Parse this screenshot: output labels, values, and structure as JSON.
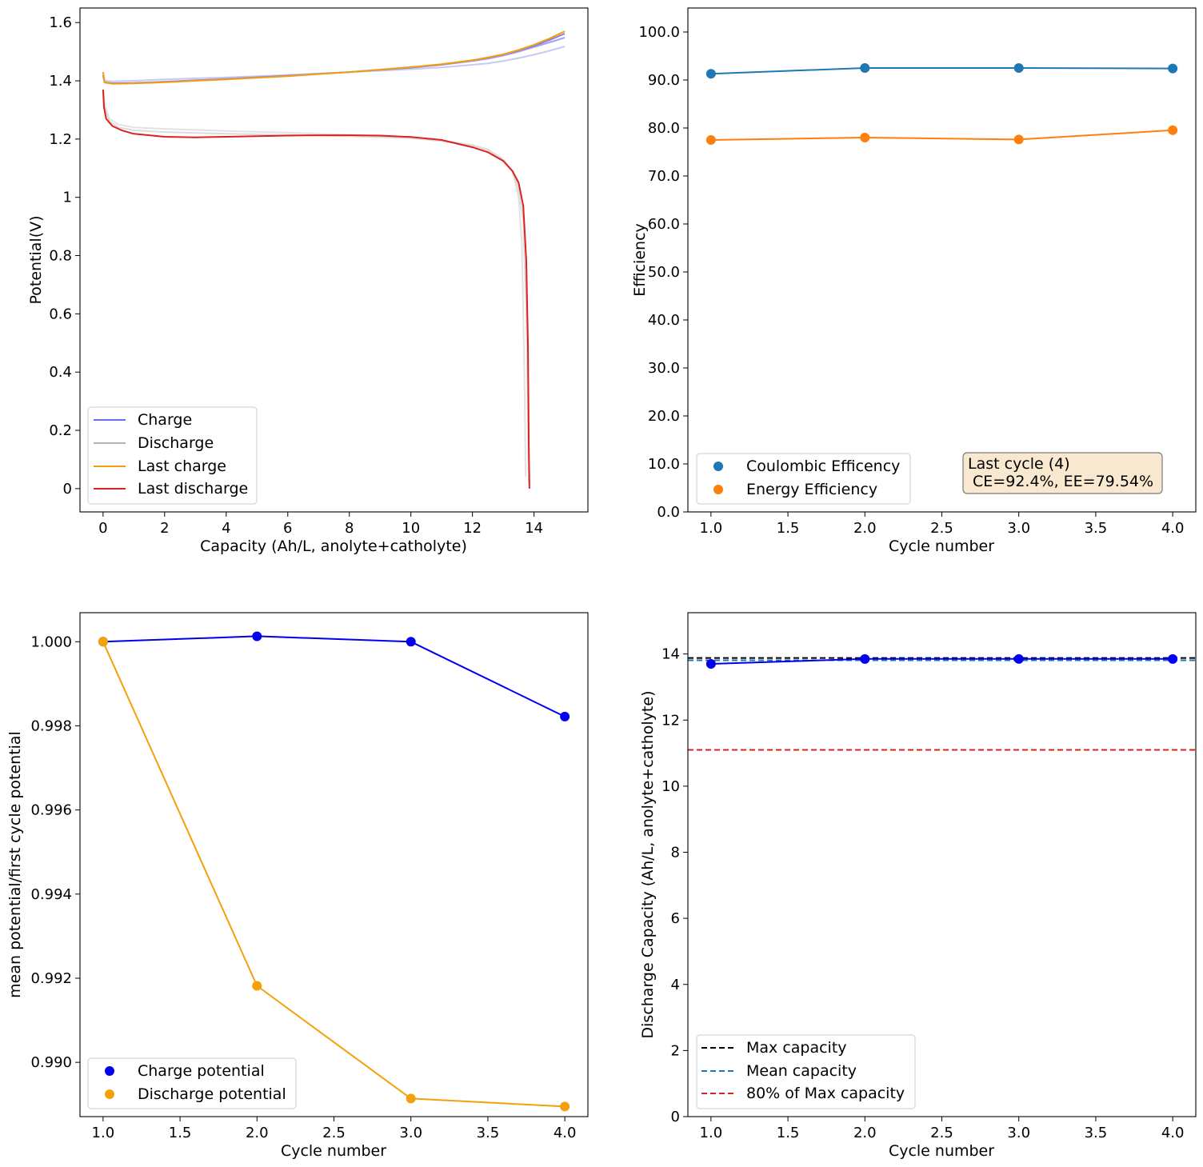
{
  "chart_data": [
    {
      "type": "line",
      "title": "",
      "xlabel": "Capacity (Ah/L, anolyte+catholyte)",
      "ylabel": "Potential(V)",
      "xlim": [
        -0.75,
        15.75
      ],
      "ylim": [
        -0.08,
        1.65
      ],
      "xticks": [
        0,
        2,
        4,
        6,
        8,
        10,
        12,
        14
      ],
      "yticks": [
        0.0,
        0.2,
        0.4,
        0.6,
        0.8,
        1.0,
        1.2,
        1.4,
        1.6
      ],
      "legend_position": "lower-left",
      "legend": [
        {
          "label": "Charge",
          "color": "#6b6bf0"
        },
        {
          "label": "Discharge",
          "color": "#b4b4b4"
        },
        {
          "label": "Last charge",
          "color": "#f59e0b"
        },
        {
          "label": "Last discharge",
          "color": "#dd2020"
        }
      ],
      "series": [
        {
          "name": "Charge (cycle 1)",
          "color": "#c8c8f5",
          "x": [
            0,
            0.05,
            0.3,
            1,
            2,
            4,
            6,
            8,
            10,
            11,
            12,
            12.5,
            13,
            13.5,
            14,
            14.5,
            15
          ],
          "y": [
            1.42,
            1.4,
            1.398,
            1.4,
            1.405,
            1.412,
            1.42,
            1.43,
            1.44,
            1.446,
            1.455,
            1.46,
            1.468,
            1.478,
            1.49,
            1.503,
            1.518
          ]
        },
        {
          "name": "Charge (cycle 2)",
          "color": "#a0a0f0",
          "x": [
            0,
            0.05,
            0.3,
            1,
            2,
            4,
            6,
            8,
            10,
            11,
            12,
            12.5,
            13,
            13.5,
            14,
            14.5,
            15
          ],
          "y": [
            1.42,
            1.395,
            1.392,
            1.393,
            1.397,
            1.407,
            1.418,
            1.43,
            1.445,
            1.455,
            1.468,
            1.476,
            1.487,
            1.5,
            1.516,
            1.532,
            1.548
          ]
        },
        {
          "name": "Charge (cycle 3)",
          "color": "#8080ee",
          "x": [
            0,
            0.05,
            0.3,
            1,
            2,
            4,
            6,
            8,
            10,
            11,
            12,
            12.5,
            13,
            13.5,
            14,
            14.5,
            15
          ],
          "y": [
            1.42,
            1.394,
            1.391,
            1.392,
            1.396,
            1.406,
            1.417,
            1.43,
            1.446,
            1.456,
            1.47,
            1.479,
            1.49,
            1.504,
            1.52,
            1.54,
            1.562
          ]
        },
        {
          "name": "Discharge (cycle 1)",
          "color": "#e2e2e2",
          "x": [
            0,
            0.05,
            0.2,
            0.5,
            1,
            2,
            4,
            6,
            8,
            10,
            11,
            12,
            12.5,
            13,
            13.3,
            13.5,
            13.6,
            13.65,
            13.7,
            13.72,
            13.73
          ],
          "y": [
            1.37,
            1.32,
            1.27,
            1.25,
            1.24,
            1.235,
            1.228,
            1.222,
            1.215,
            1.205,
            1.195,
            1.18,
            1.165,
            1.13,
            1.09,
            1.0,
            0.85,
            0.6,
            0.3,
            0.1,
            0.04
          ]
        },
        {
          "name": "Discharge (cycle 2)",
          "color": "#dcdcdc",
          "x": [
            0,
            0.05,
            0.2,
            0.5,
            1,
            2,
            4,
            6,
            8,
            10,
            11,
            12,
            12.5,
            13,
            13.3,
            13.5,
            13.65,
            13.75,
            13.8,
            13.82,
            13.83
          ],
          "y": [
            1.37,
            1.31,
            1.26,
            1.24,
            1.23,
            1.224,
            1.218,
            1.214,
            1.21,
            1.203,
            1.193,
            1.178,
            1.162,
            1.13,
            1.09,
            1.03,
            0.92,
            0.6,
            0.25,
            0.08,
            0.02
          ]
        },
        {
          "name": "Last charge",
          "color": "#f59e0b",
          "x": [
            0,
            0.05,
            0.3,
            1,
            2,
            4,
            6,
            8,
            10,
            11,
            12,
            12.5,
            13,
            13.5,
            14,
            14.5,
            15
          ],
          "y": [
            1.43,
            1.395,
            1.39,
            1.391,
            1.395,
            1.405,
            1.416,
            1.43,
            1.447,
            1.457,
            1.471,
            1.48,
            1.491,
            1.506,
            1.524,
            1.545,
            1.57
          ]
        },
        {
          "name": "Last discharge",
          "color": "#dd2020",
          "x": [
            0,
            0.03,
            0.1,
            0.3,
            0.6,
            1,
            2,
            3,
            4,
            5,
            6,
            7,
            8,
            9,
            10,
            11,
            12,
            12.5,
            13,
            13.3,
            13.5,
            13.65,
            13.75,
            13.8,
            13.83,
            13.85
          ],
          "y": [
            1.37,
            1.31,
            1.27,
            1.245,
            1.23,
            1.218,
            1.208,
            1.206,
            1.208,
            1.21,
            1.212,
            1.213,
            1.213,
            1.212,
            1.207,
            1.197,
            1.172,
            1.155,
            1.125,
            1.09,
            1.05,
            0.97,
            0.78,
            0.5,
            0.15,
            0.0
          ]
        }
      ]
    },
    {
      "type": "line",
      "title": "",
      "xlabel": "Cycle number",
      "ylabel": "Efficiency",
      "xlim": [
        0.85,
        4.15
      ],
      "ylim": [
        0,
        105
      ],
      "xticks": [
        1.0,
        1.5,
        2.0,
        2.5,
        3.0,
        3.5,
        4.0
      ],
      "yticks": [
        0,
        10,
        20,
        30,
        40,
        50,
        60,
        70,
        80,
        90,
        100
      ],
      "legend_position": "lower-left",
      "annotation": {
        "line1": "Last cycle (4)",
        "line2": " CE=92.4%, EE=79.54%"
      },
      "series": [
        {
          "name": "Coulombic Efficency",
          "color": "#1f77b4",
          "x": [
            1,
            2,
            3,
            4
          ],
          "y": [
            91.3,
            92.5,
            92.5,
            92.4
          ]
        },
        {
          "name": "Energy Efficiency",
          "color": "#ff7f0e",
          "x": [
            1,
            2,
            3,
            4
          ],
          "y": [
            77.5,
            78.0,
            77.6,
            79.54
          ]
        }
      ]
    },
    {
      "type": "line",
      "title": "",
      "xlabel": "Cycle number",
      "ylabel": "mean potential/first cycle potential",
      "xlim": [
        0.85,
        4.15
      ],
      "ylim": [
        0.98871,
        1.00069
      ],
      "xticks": [
        1.0,
        1.5,
        2.0,
        2.5,
        3.0,
        3.5,
        4.0
      ],
      "yticks": [
        0.99,
        0.992,
        0.994,
        0.996,
        0.998,
        1.0
      ],
      "legend_position": "lower-left",
      "series": [
        {
          "name": "Charge potential",
          "color": "#0000ee",
          "x": [
            1,
            2,
            3,
            4
          ],
          "y": [
            1.0,
            1.00013,
            1.0,
            0.99822
          ]
        },
        {
          "name": "Discharge potential",
          "color": "#f5a00b",
          "x": [
            1,
            2,
            3,
            4
          ],
          "y": [
            1.0,
            0.99182,
            0.98914,
            0.98895
          ]
        }
      ]
    },
    {
      "type": "line",
      "title": "",
      "xlabel": "Cycle number",
      "ylabel": "Discharge Capacity (Ah/L, anolyte+catholyte)",
      "xlim": [
        0.85,
        4.15
      ],
      "ylim": [
        0,
        15.25
      ],
      "xticks": [
        1.0,
        1.5,
        2.0,
        2.5,
        3.0,
        3.5,
        4.0
      ],
      "yticks": [
        0,
        2,
        4,
        6,
        8,
        10,
        12,
        14
      ],
      "legend_position": "lower-left",
      "series": [
        {
          "name": "Discharge capacity",
          "color": "#0000ee",
          "x": [
            1,
            2,
            3,
            4
          ],
          "y": [
            13.7,
            13.85,
            13.85,
            13.85
          ]
        }
      ],
      "hlines": [
        {
          "name": "Max capacity",
          "color": "#000000",
          "y": 13.88
        },
        {
          "name": "Mean capacity",
          "color": "#1f77b4",
          "y": 13.81
        },
        {
          "name": "80% of Max capacity",
          "color": "#dd2020",
          "y": 11.1
        }
      ]
    }
  ]
}
